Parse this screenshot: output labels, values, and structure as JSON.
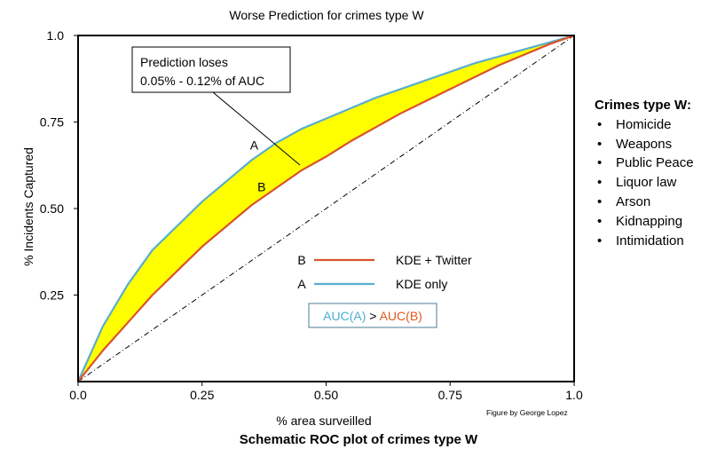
{
  "chart_data": {
    "type": "line",
    "title": "Worse Prediction for crimes type W",
    "xlabel": "% area surveilled",
    "ylabel": "% Incidents Captured",
    "xlim": [
      0,
      1
    ],
    "ylim": [
      0,
      1
    ],
    "x_ticks": [
      "0.0",
      "0.25",
      "0.50",
      "0.75",
      "1.0"
    ],
    "y_ticks": [
      "0.25",
      "0.50",
      "0.75",
      "1.0"
    ],
    "series": [
      {
        "name": "KDE only",
        "marker": "A",
        "color": "#5aaecf",
        "x": [
          0,
          0.05,
          0.1,
          0.15,
          0.2,
          0.25,
          0.3,
          0.35,
          0.4,
          0.45,
          0.5,
          0.55,
          0.6,
          0.65,
          0.7,
          0.75,
          0.8,
          0.85,
          0.9,
          0.95,
          1.0
        ],
        "y": [
          0,
          0.16,
          0.28,
          0.38,
          0.45,
          0.52,
          0.58,
          0.64,
          0.69,
          0.73,
          0.76,
          0.79,
          0.82,
          0.845,
          0.87,
          0.895,
          0.92,
          0.94,
          0.96,
          0.98,
          1.0
        ]
      },
      {
        "name": "KDE + Twitter",
        "marker": "B",
        "color": "#d9542a",
        "x": [
          0,
          0.05,
          0.1,
          0.15,
          0.2,
          0.25,
          0.3,
          0.35,
          0.4,
          0.45,
          0.5,
          0.55,
          0.6,
          0.65,
          0.7,
          0.75,
          0.8,
          0.85,
          0.9,
          0.95,
          1.0
        ],
        "y": [
          0,
          0.09,
          0.17,
          0.25,
          0.32,
          0.39,
          0.45,
          0.51,
          0.56,
          0.61,
          0.65,
          0.695,
          0.735,
          0.775,
          0.81,
          0.845,
          0.88,
          0.915,
          0.945,
          0.975,
          1.0
        ]
      }
    ],
    "diagonal": true,
    "fill_between": {
      "color": "#ffff00"
    },
    "curve_labels": [
      {
        "text": "A",
        "x": 0.355,
        "y": 0.67
      },
      {
        "text": "B",
        "x": 0.37,
        "y": 0.55
      }
    ],
    "callout": {
      "line1": "Prediction loses",
      "line2": "0.05% - 0.12% of AUC"
    },
    "legend": {
      "entries": [
        {
          "marker": "B",
          "label": "KDE + Twitter",
          "color": "#d9542a"
        },
        {
          "marker": "A",
          "label": "KDE only",
          "color": "#5aaecf"
        }
      ]
    },
    "auc_box": {
      "left": "AUC(A)",
      "op": ">",
      "right": "AUC(B)",
      "left_color": "#4baed1",
      "right_color": "#e0581c"
    }
  },
  "side_panel": {
    "title": "Crimes type W",
    "title_suffix": ":",
    "items": [
      "Homicide",
      "Weapons",
      "Public Peace",
      "Liquor law",
      "Arson",
      "Kidnapping",
      "Intimidation"
    ]
  },
  "credit": "Figure by George Lopez",
  "caption": "Schematic ROC plot of crimes type W"
}
